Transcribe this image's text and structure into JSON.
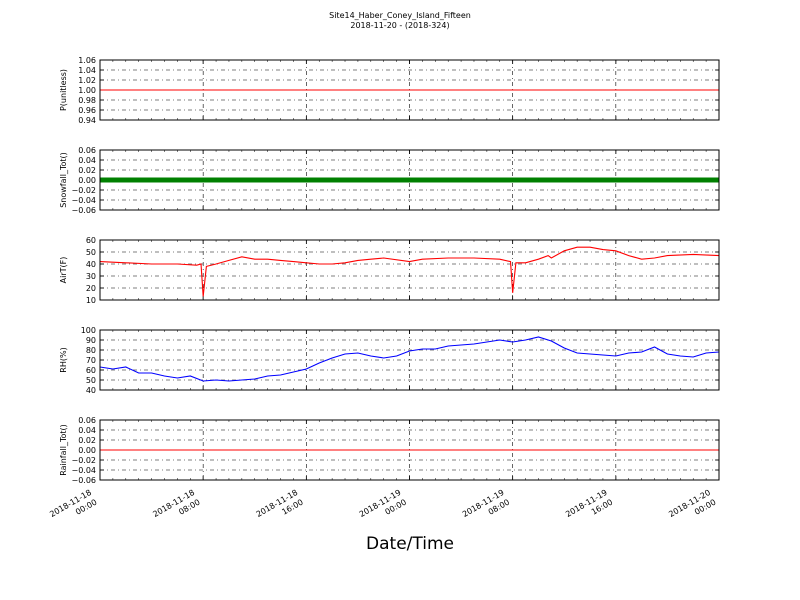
{
  "title": "Site14_Haber_Coney_Island_Fifteen",
  "subtitle": "2018-11-20 - (2018-324)",
  "xlabel": "Date/Time",
  "x_ticks": [
    {
      "l1": "2018-11-18",
      "l2": "00:00"
    },
    {
      "l1": "2018-11-18",
      "l2": "08:00"
    },
    {
      "l1": "2018-11-18",
      "l2": "16:00"
    },
    {
      "l1": "2018-11-19",
      "l2": "00:00"
    },
    {
      "l1": "2018-11-19",
      "l2": "08:00"
    },
    {
      "l1": "2018-11-19",
      "l2": "16:00"
    },
    {
      "l1": "2018-11-20",
      "l2": "00:00"
    }
  ],
  "chart_data": [
    {
      "type": "line",
      "ylabel": "P(unitless)",
      "ylim": [
        0.94,
        1.06
      ],
      "yticks": [
        "0.94",
        "0.96",
        "0.98",
        "1.00",
        "1.02",
        "1.04",
        "1.06"
      ],
      "grid": true,
      "color": "#ff0000",
      "x_range": [
        "2018-11-18 00:00",
        "2018-11-20 00:00"
      ],
      "series": [
        {
          "x": [
            "2018-11-18 00:00",
            "2018-11-20 00:00"
          ],
          "y": [
            1.0,
            1.0
          ]
        }
      ]
    },
    {
      "type": "line",
      "ylabel": "Snowfall_Tot()",
      "ylim": [
        -0.06,
        0.06
      ],
      "yticks": [
        "−0.06",
        "−0.04",
        "−0.02",
        "0.00",
        "0.02",
        "0.04",
        "0.06"
      ],
      "grid": true,
      "color": "#008000",
      "markers": true,
      "x_range": [
        "2018-11-18 00:00",
        "2018-11-20 00:00"
      ],
      "series": [
        {
          "x": [
            "2018-11-18 00:00",
            "2018-11-20 00:00"
          ],
          "y": [
            0.0,
            0.0
          ]
        }
      ]
    },
    {
      "type": "line",
      "ylabel": "AirT(F)",
      "ylim": [
        10,
        60
      ],
      "yticks": [
        "10",
        "20",
        "30",
        "40",
        "50",
        "60"
      ],
      "grid": true,
      "color": "#ff0000",
      "x_range": [
        "2018-11-18 00:00",
        "2018-11-20 00:00"
      ],
      "series": [
        {
          "x": [
            "2018-11-18 00:00",
            "2018-11-18 02:00",
            "2018-11-18 04:00",
            "2018-11-18 06:00",
            "2018-11-18 07:30",
            "2018-11-18 07:50",
            "2018-11-18 08:00",
            "2018-11-18 08:15",
            "2018-11-18 09:00",
            "2018-11-18 10:00",
            "2018-11-18 11:00",
            "2018-11-18 12:00",
            "2018-11-18 13:00",
            "2018-11-18 14:00",
            "2018-11-18 15:00",
            "2018-11-18 16:00",
            "2018-11-18 17:00",
            "2018-11-18 18:00",
            "2018-11-18 19:00",
            "2018-11-18 20:00",
            "2018-11-18 21:00",
            "2018-11-18 22:00",
            "2018-11-19 00:00",
            "2018-11-19 01:00",
            "2018-11-19 03:00",
            "2018-11-19 05:00",
            "2018-11-19 07:00",
            "2018-11-19 07:50",
            "2018-11-19 08:00",
            "2018-11-19 08:15",
            "2018-11-19 09:00",
            "2018-11-19 10:00",
            "2018-11-19 10:45",
            "2018-11-19 11:00",
            "2018-11-19 12:00",
            "2018-11-19 13:00",
            "2018-11-19 14:00",
            "2018-11-19 15:00",
            "2018-11-19 16:00",
            "2018-11-19 17:00",
            "2018-11-19 18:00",
            "2018-11-19 19:00",
            "2018-11-19 20:00",
            "2018-11-19 22:00",
            "2018-11-20 00:00"
          ],
          "y": [
            42,
            41,
            40,
            40,
            39,
            40,
            13,
            38,
            40,
            43,
            46,
            44,
            44,
            43,
            42,
            41,
            40,
            40,
            41,
            43,
            44,
            45,
            42,
            44,
            45,
            45,
            44,
            42,
            16,
            41,
            41,
            44,
            47,
            45,
            51,
            54,
            54,
            52,
            51,
            47,
            44,
            45,
            47,
            48,
            47
          ]
        }
      ]
    },
    {
      "type": "line",
      "ylabel": "RH(%)",
      "ylim": [
        40,
        100
      ],
      "yticks": [
        "40",
        "50",
        "60",
        "70",
        "80",
        "90",
        "100"
      ],
      "grid": true,
      "color": "#0000ff",
      "x_range": [
        "2018-11-18 00:00",
        "2018-11-20 00:00"
      ],
      "series": [
        {
          "x": [
            "2018-11-18 00:00",
            "2018-11-18 01:00",
            "2018-11-18 02:00",
            "2018-11-18 03:00",
            "2018-11-18 04:00",
            "2018-11-18 05:00",
            "2018-11-18 06:00",
            "2018-11-18 07:00",
            "2018-11-18 08:00",
            "2018-11-18 09:00",
            "2018-11-18 10:00",
            "2018-11-18 11:00",
            "2018-11-18 12:00",
            "2018-11-18 13:00",
            "2018-11-18 14:00",
            "2018-11-18 15:00",
            "2018-11-18 16:00",
            "2018-11-18 17:00",
            "2018-11-18 18:00",
            "2018-11-18 19:00",
            "2018-11-18 20:00",
            "2018-11-18 21:00",
            "2018-11-18 22:00",
            "2018-11-18 23:00",
            "2018-11-19 00:00",
            "2018-11-19 01:00",
            "2018-11-19 02:00",
            "2018-11-19 03:00",
            "2018-11-19 04:00",
            "2018-11-19 05:00",
            "2018-11-19 06:00",
            "2018-11-19 07:00",
            "2018-11-19 08:00",
            "2018-11-19 09:00",
            "2018-11-19 10:00",
            "2018-11-19 11:00",
            "2018-11-19 12:00",
            "2018-11-19 13:00",
            "2018-11-19 14:00",
            "2018-11-19 15:00",
            "2018-11-19 16:00",
            "2018-11-19 17:00",
            "2018-11-19 18:00",
            "2018-11-19 19:00",
            "2018-11-19 20:00",
            "2018-11-19 21:00",
            "2018-11-19 22:00",
            "2018-11-19 23:00",
            "2018-11-20 00:00"
          ],
          "y": [
            63,
            61,
            63,
            57,
            57,
            54,
            52,
            54,
            49,
            50,
            49,
            50,
            51,
            54,
            55,
            58,
            61,
            67,
            72,
            76,
            77,
            74,
            72,
            74,
            79,
            81,
            81,
            84,
            85,
            86,
            88,
            90,
            88,
            90,
            93,
            89,
            82,
            77,
            76,
            75,
            74,
            77,
            78,
            83,
            76,
            74,
            73,
            77,
            78
          ]
        }
      ]
    },
    {
      "type": "line",
      "ylabel": "Rainfall_Tot()",
      "ylim": [
        -0.06,
        0.06
      ],
      "yticks": [
        "−0.06",
        "−0.04",
        "−0.02",
        "0.00",
        "0.02",
        "0.04",
        "0.06"
      ],
      "grid": true,
      "color": "#ff0000",
      "x_range": [
        "2018-11-18 00:00",
        "2018-11-20 00:00"
      ],
      "series": [
        {
          "x": [
            "2018-11-18 00:00",
            "2018-11-20 00:00"
          ],
          "y": [
            0.0,
            0.0
          ]
        }
      ]
    }
  ]
}
